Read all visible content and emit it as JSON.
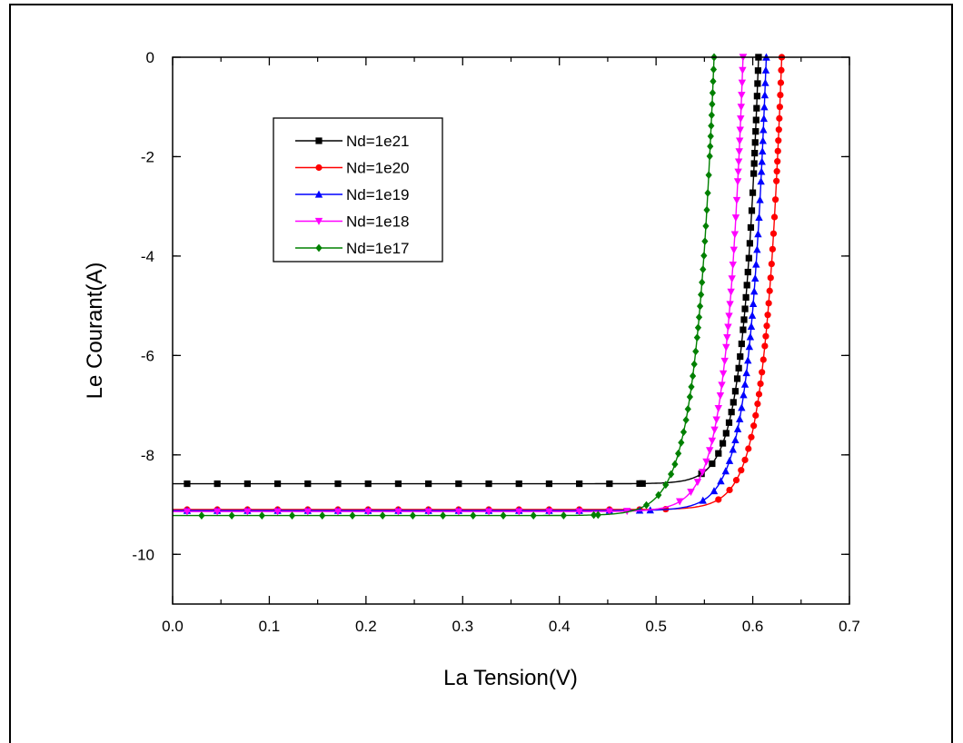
{
  "chart_data": {
    "type": "line",
    "title": "",
    "xlabel": "La Tension(V)",
    "ylabel": "Le Courant(A)",
    "xlim": [
      0.0,
      0.7
    ],
    "ylim": [
      -11,
      0
    ],
    "x_ticks": [
      0.0,
      0.1,
      0.2,
      0.3,
      0.4,
      0.5,
      0.6,
      0.7
    ],
    "x_tick_labels": [
      "0.0",
      "0.1",
      "0.2",
      "0.3",
      "0.4",
      "0.5",
      "0.6",
      "0.7"
    ],
    "y_ticks": [
      0,
      -2,
      -4,
      -6,
      -8,
      -10
    ],
    "y_tick_labels": [
      "0",
      "-2",
      "-4",
      "-6",
      "-8",
      "-10"
    ],
    "grid": false,
    "legend_position": "top-left",
    "series": [
      {
        "name": "Nd=1e21",
        "color": "#000000",
        "marker": "square",
        "isc": -8.58,
        "voc": 0.606,
        "a": 0.0157,
        "x_start": 0.015,
        "x_step": 0.0312,
        "points": 36
      },
      {
        "name": "Nd=1e20",
        "color": "#ff0000",
        "marker": "circle",
        "isc": -9.1,
        "voc": 0.63,
        "a": 0.0172,
        "x_start": 0.015,
        "x_step": 0.0312,
        "points": 36
      },
      {
        "name": "Nd=1e19",
        "color": "#0000ff",
        "marker": "triangle-up",
        "isc": -9.12,
        "voc": 0.614,
        "a": 0.0172,
        "x_start": 0.015,
        "x_step": 0.0312,
        "points": 36
      },
      {
        "name": "Nd=1e18",
        "color": "#ff00ff",
        "marker": "triangle-down",
        "isc": -9.14,
        "voc": 0.59,
        "a": 0.0172,
        "x_start": 0.015,
        "x_step": 0.0312,
        "points": 36
      },
      {
        "name": "Nd=1e17",
        "color": "#008000",
        "marker": "diamond",
        "isc": -9.22,
        "voc": 0.56,
        "a": 0.0185,
        "x_start": 0.03,
        "x_step": 0.0312,
        "points": 33
      }
    ]
  }
}
